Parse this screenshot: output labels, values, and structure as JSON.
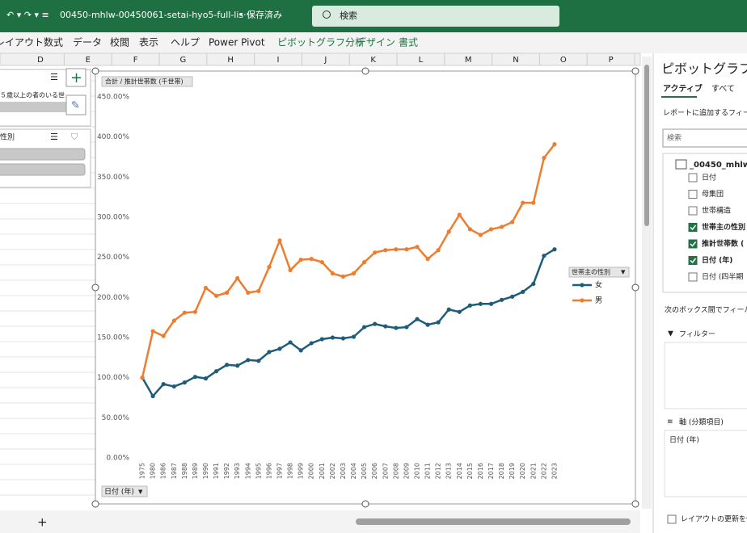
{
  "titlebar": {
    "filename": "00450-mhlw-00450061-setai-hyo5-full-lis···",
    "status": "• 保存済み",
    "search": "検索"
  },
  "ribbon_tabs": [
    "レイアウト",
    "数式",
    "データ",
    "校閲",
    "表示",
    "ヘルプ",
    "Power Pivot",
    "ピボットグラフ分析",
    "デザイン",
    "書式"
  ],
  "columns": [
    "D",
    "E",
    "F",
    "G",
    "H",
    "I",
    "J",
    "K",
    "L",
    "M",
    "N",
    "O",
    "P"
  ],
  "slicers": [
    {
      "title": "５歳以上の者のいる世"
    },
    {
      "title": "性別"
    }
  ],
  "chart_data": {
    "type": "line",
    "value_field_button": "合計 / 推計世帯数 (千世帯)",
    "axis_field_button": "日付 (年)",
    "legend_title": "世帯主の性別",
    "categories": [
      "1975",
      "1980",
      "1986",
      "1987",
      "1988",
      "1989",
      "1990",
      "1991",
      "1992",
      "1993",
      "1994",
      "1995",
      "1996",
      "1997",
      "1998",
      "1999",
      "2000",
      "2001",
      "2002",
      "2003",
      "2004",
      "2005",
      "2006",
      "2007",
      "2008",
      "2009",
      "2010",
      "2011",
      "2012",
      "2013",
      "2014",
      "2015",
      "2016",
      "2017",
      "2018",
      "2019",
      "2020",
      "2021",
      "2022",
      "2023"
    ],
    "series": [
      {
        "name": "女",
        "color": "#1f5c7a",
        "values": [
          100,
          77,
          92,
          89,
          94,
          101,
          99,
          108,
          116,
          115,
          122,
          121,
          132,
          136,
          144,
          134,
          143,
          148,
          150,
          149,
          151,
          163,
          167,
          164,
          162,
          163,
          173,
          166,
          169,
          185,
          182,
          190,
          192,
          192,
          197,
          201,
          207,
          217,
          252,
          260
        ]
      },
      {
        "name": "男",
        "color": "#ed7d31",
        "values": [
          100,
          158,
          152,
          171,
          181,
          182,
          212,
          202,
          206,
          224,
          206,
          208,
          238,
          271,
          234,
          247,
          248,
          244,
          230,
          226,
          230,
          244,
          256,
          259,
          260,
          260,
          263,
          248,
          259,
          282,
          303,
          285,
          278,
          285,
          288,
          294,
          318,
          318,
          374,
          391
        ]
      }
    ],
    "ylim": [
      0,
      450
    ],
    "yticks": [
      {
        "value": 0,
        "label": "0.00%"
      },
      {
        "value": 50,
        "label": "50.00%"
      },
      {
        "value": 100,
        "label": "100.00%"
      },
      {
        "value": 150,
        "label": "150.00%"
      },
      {
        "value": 200,
        "label": "200.00%"
      },
      {
        "value": 250,
        "label": "250.00%"
      },
      {
        "value": 300,
        "label": "300.00%"
      },
      {
        "value": 350,
        "label": "350.00%"
      },
      {
        "value": 400,
        "label": "400.00%"
      },
      {
        "value": 450,
        "label": "450.00%"
      }
    ],
    "grid": false
  },
  "pane": {
    "title": "ピボットグラフの",
    "tabs": [
      "アクティブ",
      "すべて"
    ],
    "instruction": "レポートに追加するフィール",
    "search": "検索",
    "table": "_00450_mhlw",
    "fields": [
      {
        "name": "日付",
        "checked": false
      },
      {
        "name": "母集団",
        "checked": false
      },
      {
        "name": "世帯構造",
        "checked": false
      },
      {
        "name": "世帯主の性別",
        "checked": true
      },
      {
        "name": "推計世帯数 (",
        "checked": true
      },
      {
        "name": "日付 (年)",
        "checked": true
      },
      {
        "name": "日付 (四半期",
        "checked": false
      }
    ],
    "drop_instruction": "次のボックス間でフィールド",
    "filter": "フィルター",
    "axis": "軸 (分類項目)",
    "axis_item": "日付 (年)",
    "defer": "レイアウトの更新を保"
  },
  "sheet_add": "+"
}
